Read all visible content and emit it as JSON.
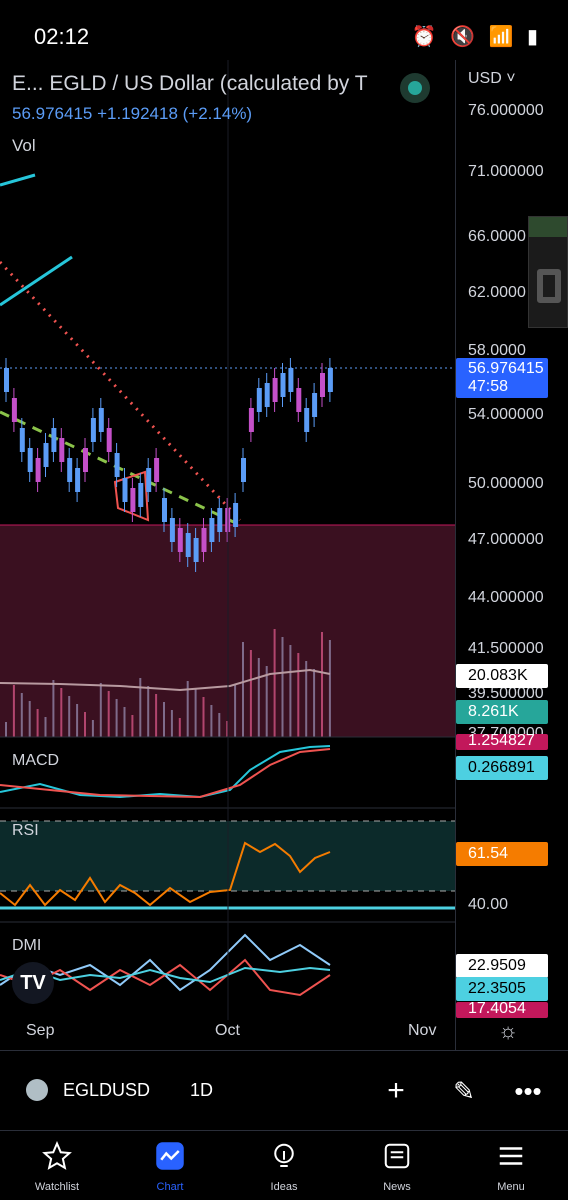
{
  "status": {
    "time": "02:12",
    "icons": "⏰ 🔇 📶 ▮"
  },
  "header": {
    "title": "E...   EGLD / US Dollar (calculated by T",
    "price": "56.976415  +1.192418 (+2.14%)",
    "vol": "Vol"
  },
  "currency": "USD",
  "price_axis": [
    "76.000000",
    "71.000000",
    "66.0000",
    "62.0000",
    "58.0000",
    "54.000000",
    "50.000000",
    "47.000000",
    "44.000000",
    "41.500000",
    "39.500000",
    "37.700000"
  ],
  "tags": {
    "last_price": "56.976415",
    "countdown": "47:58",
    "vol_ma": "20.083K",
    "vol": "8.261K",
    "macd1": "1.254827",
    "macd2": "0.266891",
    "rsi": "61.54",
    "rsi_level": "40.00",
    "dmi1": "22.9509",
    "dmi2": "22.3505",
    "dmi3": "17.4054"
  },
  "panes": {
    "macd": "MACD",
    "rsi": "RSI",
    "dmi": "DMI"
  },
  "xaxis": [
    "Sep",
    "Oct",
    "Nov"
  ],
  "toolbar": {
    "symbol": "EGLDUSD",
    "interval": "1D"
  },
  "nav": [
    {
      "label": "Watchlist",
      "icon": "star-icon"
    },
    {
      "label": "Chart",
      "icon": "chart-icon"
    },
    {
      "label": "Ideas",
      "icon": "lightbulb-icon"
    },
    {
      "label": "News",
      "icon": "news-icon"
    },
    {
      "label": "Menu",
      "icon": "menu-icon"
    }
  ],
  "colors": {
    "up": "#5b9cf6",
    "down": "#c450c9",
    "rsi": "#f57c00",
    "accent": "#2962ff"
  }
}
